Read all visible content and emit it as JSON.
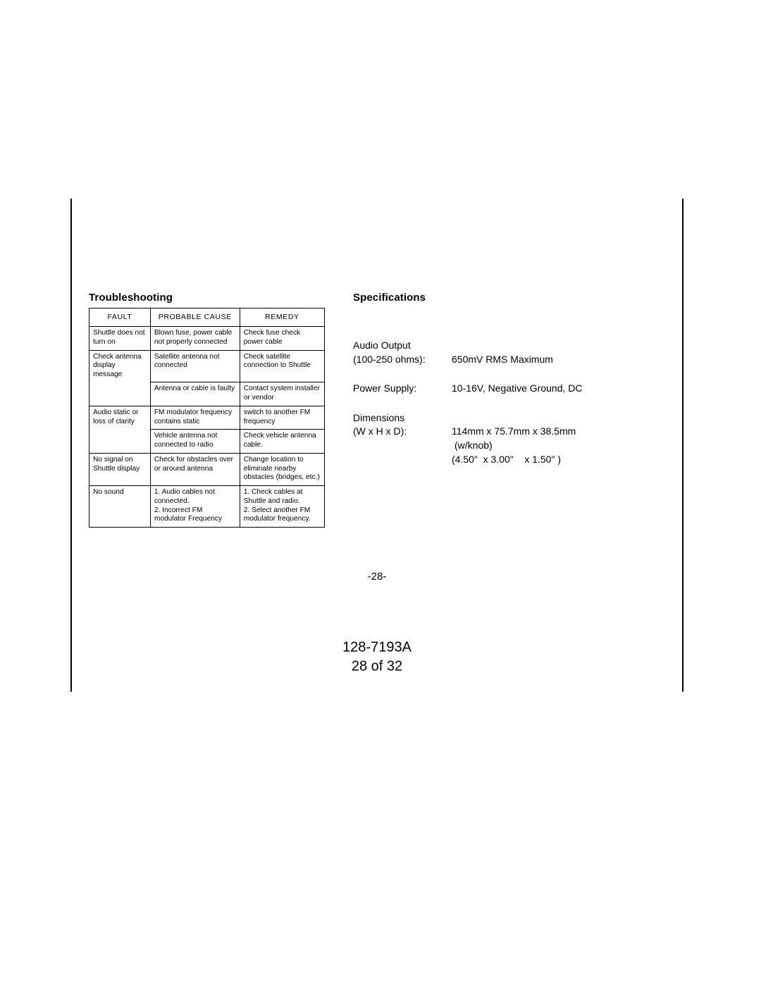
{
  "left": {
    "title": "Troubleshooting",
    "headers": [
      "FAULT",
      "PROBABLE CAUSE",
      "REMEDY"
    ],
    "rows": [
      {
        "fault": "Shuttle does not turn on",
        "cause": "Blown fuse, power cable not properly connected",
        "remedy": "Check fuse check power cable",
        "faultOpenDown": false
      },
      {
        "fault": "Check antenna display message",
        "cause": "Satellite antenna not connected",
        "remedy": "Check satellite connection to Shuttle",
        "faultOpenDown": true
      },
      {
        "fault": "",
        "cause": "Antenna or cable is faulty",
        "remedy": "Contact system installer or vendor",
        "continuation": true
      },
      {
        "fault": "Audio static or loss of clarity",
        "cause": "FM modulator frequency contains static",
        "remedy": "switch to another FM frequency",
        "faultOpenDown": true
      },
      {
        "fault": "",
        "cause": "Vehicle antenna not connected to radio",
        "remedy": "Check vehicle antenna cable.",
        "continuation": true
      },
      {
        "fault": "No signal on Shuttle display",
        "cause": "Check for obstacles over or around antenna",
        "remedy": "Change location to eliminate nearby obstacles (bridges, etc.)",
        "faultOpenDown": false
      },
      {
        "fault": "No sound",
        "cause": "1. Audio cables not connected.\n2. Incorrect FM modulator Frequency",
        "remedy": "1. Check cables at Shuttle and radio.\n2. Select another FM modulator frequency.",
        "faultOpenDown": false
      }
    ]
  },
  "right": {
    "title": "Specifications",
    "audio": {
      "label1": "Audio Output",
      "label2": "(100-250 ohms):",
      "value": "650mV RMS Maximum"
    },
    "power": {
      "label": "Power Supply:",
      "value": "10-16V, Negative Ground, DC"
    },
    "dims": {
      "label1": "Dimensions",
      "label2": "(W x H x D):",
      "value1": "114mm x 75.7mm x 38.5mm",
      "value2": "(w/knob)",
      "value3": "(4.50\"  x 3.00\"    x 1.50\" )"
    }
  },
  "pageNumber": "-28-",
  "docId1": "128-7193A",
  "docId2": "28 of 32"
}
